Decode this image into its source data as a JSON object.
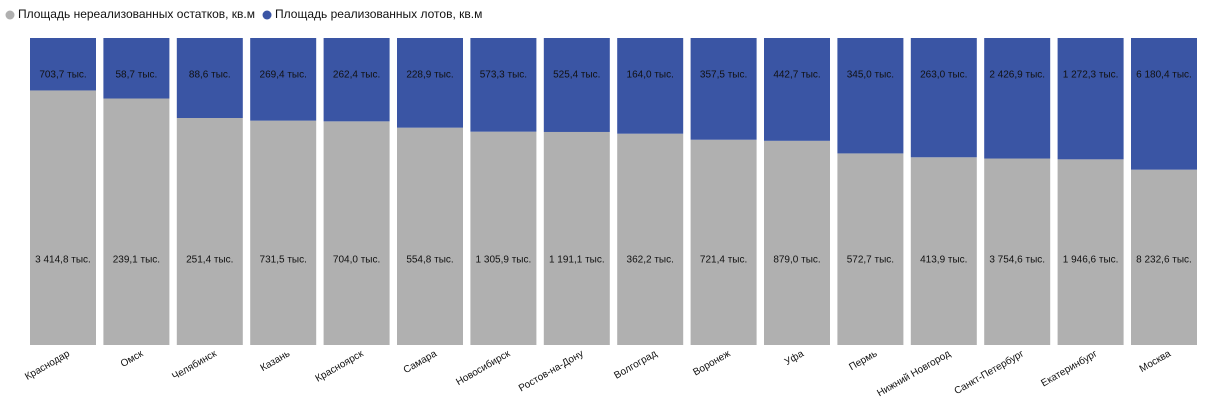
{
  "chart_data": {
    "type": "bar",
    "stacking": "percent",
    "categories": [
      "Краснодар",
      "Омск",
      "Челябинск",
      "Казань",
      "Красноярск",
      "Самара",
      "Новосибирск",
      "Ростов-на-Дону",
      "Волгоград",
      "Воронеж",
      "Уфа",
      "Пермь",
      "Нижний Новгород",
      "Санкт-Петербург",
      "Екатеринбург",
      "Москва"
    ],
    "series": [
      {
        "name": "Площадь нереализованных остатков, кв.м",
        "color": "#b0b0b0",
        "values": [
          3414.8,
          239.1,
          251.4,
          731.5,
          704.0,
          554.8,
          1305.9,
          1191.1,
          362.2,
          721.4,
          879.0,
          572.7,
          413.9,
          3754.6,
          1946.6,
          8232.6
        ],
        "value_labels": [
          "3 414,8 тыс.",
          "239,1 тыс.",
          "251,4 тыс.",
          "731,5 тыс.",
          "704,0 тыс.",
          "554,8 тыс.",
          "1 305,9 тыс.",
          "1 191,1 тыс.",
          "362,2 тыс.",
          "721,4 тыс.",
          "879,0 тыс.",
          "572,7 тыс.",
          "413,9 тыс.",
          "3 754,6 тыс.",
          "1 946,6 тыс.",
          "8 232,6 тыс."
        ]
      },
      {
        "name": "Площадь реализованных лотов, кв.м",
        "color": "#3a55a4",
        "values": [
          703.7,
          58.7,
          88.6,
          269.4,
          262.4,
          228.9,
          573.3,
          525.4,
          164.0,
          357.5,
          442.7,
          345.0,
          263.0,
          2426.9,
          1272.3,
          6180.4
        ],
        "value_labels": [
          "703,7 тыс.",
          "58,7 тыс.",
          "88,6 тыс.",
          "269,4 тыс.",
          "262,4 тыс.",
          "228,9 тыс.",
          "573,3 тыс.",
          "525,4 тыс.",
          "164,0 тыс.",
          "357,5 тыс.",
          "442,7 тыс.",
          "345,0 тыс.",
          "263,0 тыс.",
          "2 426,9 тыс.",
          "1 272,3 тыс.",
          "6 180,4 тыс."
        ]
      }
    ]
  }
}
